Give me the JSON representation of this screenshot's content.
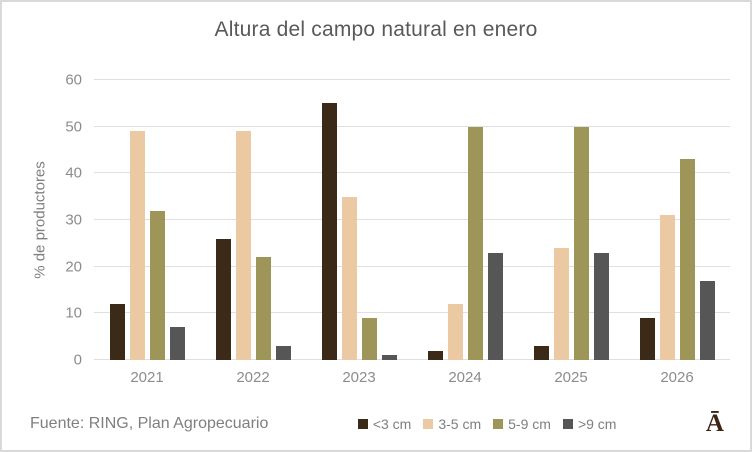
{
  "title": "Altura del campo natural en enero",
  "footer": {
    "source": "Fuente: RING, Plan Agropecuario"
  },
  "logo_text": "Ā",
  "colors": {
    "series_lt3": "#3b2a17",
    "series_3to5": "#ebc9a3",
    "series_5to9": "#9e9659",
    "series_gt9": "#565656",
    "title_text": "#595959",
    "axis_text": "#8c8c8c",
    "gridline": "#e0e0e0",
    "border": "#d9d9d9",
    "logo": "#3b2517"
  },
  "chart_data": {
    "type": "bar",
    "title": "Altura del campo natural en enero",
    "xlabel": "",
    "ylabel": "% de productores",
    "ylim": [
      0,
      60
    ],
    "yticks": [
      0,
      10,
      20,
      30,
      40,
      50,
      60
    ],
    "grid": true,
    "legend_position": "bottom",
    "categories": [
      "2021",
      "2022",
      "2023",
      "2024",
      "2025",
      "2026"
    ],
    "series": [
      {
        "name": "<3 cm",
        "color": "#3b2a17",
        "values": [
          12,
          26,
          55,
          2,
          3,
          9
        ]
      },
      {
        "name": "3-5 cm",
        "color": "#ebc9a3",
        "values": [
          49,
          49,
          35,
          12,
          24,
          31
        ]
      },
      {
        "name": "5-9 cm",
        "color": "#9e9659",
        "values": [
          32,
          22,
          9,
          50,
          50,
          43
        ]
      },
      {
        "name": ">9 cm",
        "color": "#565656",
        "values": [
          7,
          3,
          1,
          23,
          23,
          17
        ]
      }
    ]
  }
}
